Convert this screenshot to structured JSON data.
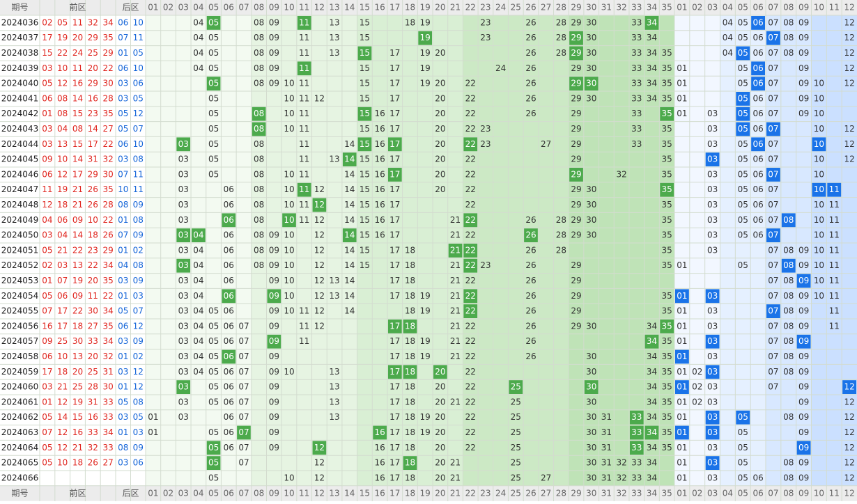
{
  "header": {
    "issue": "期号",
    "front": "前区",
    "back": "后区",
    "front_cols": [
      "01",
      "02",
      "03",
      "04",
      "05",
      "06",
      "07",
      "08",
      "09",
      "10",
      "11",
      "12",
      "13",
      "14",
      "15",
      "16",
      "17",
      "18",
      "19",
      "20",
      "21",
      "22",
      "23",
      "24",
      "25",
      "26",
      "27",
      "28",
      "29",
      "30",
      "31",
      "32",
      "33",
      "34",
      "35"
    ],
    "back_cols": [
      "01",
      "02",
      "03",
      "04",
      "05",
      "06",
      "07",
      "08",
      "09",
      "10",
      "11",
      "12"
    ]
  },
  "rows": [
    {
      "issue": "2024036",
      "front": [
        "02",
        "05",
        "11",
        "32",
        "34"
      ],
      "back": [
        "06",
        "10"
      ],
      "front_dist": [
        "04",
        "05",
        "08",
        "09",
        "11",
        "13",
        "15",
        "18",
        "19",
        "23",
        "26",
        "28",
        "29",
        "30",
        "33",
        "34"
      ],
      "back_dist": [
        "04",
        "05",
        "06",
        "07",
        "08",
        "09",
        "12"
      ]
    },
    {
      "issue": "2024037",
      "front": [
        "17",
        "19",
        "20",
        "29",
        "35"
      ],
      "back": [
        "07",
        "11"
      ],
      "front_dist": [
        "04",
        "05",
        "08",
        "09",
        "11",
        "13",
        "15",
        "19",
        "23",
        "26",
        "28",
        "29",
        "30",
        "33",
        "34"
      ],
      "back_dist": [
        "04",
        "05",
        "06",
        "07",
        "08",
        "09",
        "12"
      ]
    },
    {
      "issue": "2024038",
      "front": [
        "15",
        "22",
        "24",
        "25",
        "29"
      ],
      "back": [
        "01",
        "05"
      ],
      "front_dist": [
        "04",
        "05",
        "08",
        "09",
        "11",
        "13",
        "15",
        "17",
        "19",
        "20",
        "26",
        "28",
        "29",
        "30",
        "33",
        "34",
        "35"
      ],
      "back_dist": [
        "04",
        "05",
        "06",
        "07",
        "08",
        "09",
        "12"
      ]
    },
    {
      "issue": "2024039",
      "front": [
        "03",
        "10",
        "11",
        "20",
        "22"
      ],
      "back": [
        "06",
        "10"
      ],
      "front_dist": [
        "04",
        "05",
        "08",
        "09",
        "11",
        "15",
        "17",
        "19",
        "24",
        "26",
        "29",
        "30",
        "33",
        "34",
        "35"
      ],
      "back_dist": [
        "01",
        "05",
        "06",
        "07",
        "09",
        "12"
      ]
    },
    {
      "issue": "2024040",
      "front": [
        "05",
        "12",
        "16",
        "29",
        "30"
      ],
      "back": [
        "03",
        "06"
      ],
      "front_dist": [
        "05",
        "08",
        "09",
        "10",
        "11",
        "15",
        "17",
        "19",
        "20",
        "22",
        "26",
        "29",
        "30",
        "33",
        "34",
        "35"
      ],
      "back_dist": [
        "01",
        "05",
        "06",
        "07",
        "09",
        "10",
        "12"
      ]
    },
    {
      "issue": "2024041",
      "front": [
        "06",
        "08",
        "14",
        "16",
        "28"
      ],
      "back": [
        "03",
        "05"
      ],
      "front_dist": [
        "05",
        "10",
        "11",
        "12",
        "15",
        "17",
        "20",
        "22",
        "26",
        "29",
        "30",
        "33",
        "34",
        "35"
      ],
      "back_dist": [
        "01",
        "05",
        "06",
        "07",
        "09",
        "10"
      ]
    },
    {
      "issue": "2024042",
      "front": [
        "01",
        "08",
        "15",
        "23",
        "35"
      ],
      "back": [
        "05",
        "12"
      ],
      "front_dist": [
        "05",
        "08",
        "10",
        "11",
        "15",
        "16",
        "17",
        "20",
        "22",
        "26",
        "29",
        "33",
        "35"
      ],
      "back_dist": [
        "01",
        "03",
        "05",
        "06",
        "07",
        "09",
        "10"
      ]
    },
    {
      "issue": "2024043",
      "front": [
        "03",
        "04",
        "08",
        "14",
        "27"
      ],
      "back": [
        "05",
        "07"
      ],
      "front_dist": [
        "05",
        "08",
        "10",
        "11",
        "15",
        "16",
        "17",
        "20",
        "22",
        "23",
        "29",
        "33",
        "35"
      ],
      "back_dist": [
        "03",
        "05",
        "06",
        "07",
        "10",
        "12"
      ]
    },
    {
      "issue": "2024044",
      "front": [
        "03",
        "13",
        "15",
        "17",
        "22"
      ],
      "back": [
        "06",
        "10"
      ],
      "front_dist": [
        "03",
        "05",
        "08",
        "11",
        "14",
        "15",
        "16",
        "17",
        "20",
        "22",
        "23",
        "27",
        "29",
        "33",
        "35"
      ],
      "back_dist": [
        "03",
        "05",
        "06",
        "07",
        "10",
        "12"
      ]
    },
    {
      "issue": "2024045",
      "front": [
        "09",
        "10",
        "14",
        "31",
        "32"
      ],
      "back": [
        "03",
        "08"
      ],
      "front_dist": [
        "03",
        "05",
        "08",
        "11",
        "13",
        "14",
        "15",
        "16",
        "17",
        "20",
        "22",
        "29",
        "35"
      ],
      "back_dist": [
        "03",
        "05",
        "06",
        "07",
        "10",
        "12"
      ]
    },
    {
      "issue": "2024046",
      "front": [
        "06",
        "12",
        "17",
        "29",
        "30"
      ],
      "back": [
        "07",
        "11"
      ],
      "front_dist": [
        "03",
        "05",
        "08",
        "10",
        "11",
        "14",
        "15",
        "16",
        "17",
        "20",
        "22",
        "29",
        "32",
        "35"
      ],
      "back_dist": [
        "03",
        "05",
        "06",
        "07",
        "10"
      ]
    },
    {
      "issue": "2024047",
      "front": [
        "11",
        "19",
        "21",
        "26",
        "35"
      ],
      "back": [
        "10",
        "11"
      ],
      "front_dist": [
        "03",
        "06",
        "08",
        "10",
        "11",
        "12",
        "14",
        "15",
        "16",
        "17",
        "20",
        "22",
        "29",
        "30",
        "35"
      ],
      "back_dist": [
        "03",
        "05",
        "06",
        "07",
        "10",
        "11"
      ]
    },
    {
      "issue": "2024048",
      "front": [
        "12",
        "18",
        "21",
        "26",
        "28"
      ],
      "back": [
        "08",
        "09"
      ],
      "front_dist": [
        "03",
        "06",
        "08",
        "10",
        "11",
        "12",
        "14",
        "15",
        "16",
        "17",
        "22",
        "29",
        "30",
        "35"
      ],
      "back_dist": [
        "03",
        "05",
        "06",
        "07",
        "10",
        "11"
      ]
    },
    {
      "issue": "2024049",
      "front": [
        "04",
        "06",
        "09",
        "10",
        "22"
      ],
      "back": [
        "01",
        "08"
      ],
      "front_dist": [
        "03",
        "06",
        "08",
        "10",
        "11",
        "12",
        "14",
        "15",
        "16",
        "17",
        "21",
        "22",
        "26",
        "28",
        "29",
        "30",
        "35"
      ],
      "back_dist": [
        "03",
        "05",
        "06",
        "07",
        "08",
        "10",
        "11"
      ]
    },
    {
      "issue": "2024050",
      "front": [
        "03",
        "04",
        "14",
        "18",
        "26"
      ],
      "back": [
        "07",
        "09"
      ],
      "front_dist": [
        "03",
        "04",
        "06",
        "08",
        "09",
        "10",
        "12",
        "14",
        "15",
        "16",
        "17",
        "21",
        "22",
        "26",
        "28",
        "29",
        "30",
        "35"
      ],
      "back_dist": [
        "03",
        "05",
        "06",
        "07",
        "10",
        "11"
      ]
    },
    {
      "issue": "2024051",
      "front": [
        "05",
        "21",
        "22",
        "23",
        "29"
      ],
      "back": [
        "01",
        "02"
      ],
      "front_dist": [
        "03",
        "04",
        "06",
        "08",
        "09",
        "10",
        "12",
        "14",
        "15",
        "17",
        "18",
        "21",
        "22",
        "26",
        "28",
        "35"
      ],
      "back_dist": [
        "03",
        "07",
        "08",
        "09",
        "10",
        "11"
      ]
    },
    {
      "issue": "2024052",
      "front": [
        "02",
        "03",
        "13",
        "22",
        "34"
      ],
      "back": [
        "04",
        "08"
      ],
      "front_dist": [
        "03",
        "04",
        "06",
        "08",
        "09",
        "10",
        "12",
        "14",
        "15",
        "17",
        "18",
        "21",
        "22",
        "23",
        "26",
        "29",
        "35"
      ],
      "back_dist": [
        "01",
        "05",
        "07",
        "08",
        "09",
        "10",
        "11"
      ]
    },
    {
      "issue": "2024053",
      "front": [
        "01",
        "07",
        "19",
        "20",
        "35"
      ],
      "back": [
        "03",
        "09"
      ],
      "front_dist": [
        "03",
        "04",
        "06",
        "09",
        "10",
        "12",
        "13",
        "14",
        "17",
        "18",
        "21",
        "22",
        "26",
        "29"
      ],
      "back_dist": [
        "07",
        "08",
        "09",
        "10",
        "11"
      ]
    },
    {
      "issue": "2024054",
      "front": [
        "05",
        "06",
        "09",
        "11",
        "22"
      ],
      "back": [
        "01",
        "03"
      ],
      "front_dist": [
        "03",
        "04",
        "06",
        "09",
        "10",
        "12",
        "13",
        "14",
        "17",
        "18",
        "19",
        "21",
        "22",
        "26",
        "29",
        "35"
      ],
      "back_dist": [
        "01",
        "03",
        "07",
        "08",
        "09",
        "10",
        "11"
      ]
    },
    {
      "issue": "2024055",
      "front": [
        "07",
        "17",
        "22",
        "30",
        "34"
      ],
      "back": [
        "05",
        "07"
      ],
      "front_dist": [
        "03",
        "04",
        "05",
        "06",
        "09",
        "10",
        "11",
        "12",
        "14",
        "18",
        "19",
        "21",
        "22",
        "26",
        "29",
        "35"
      ],
      "back_dist": [
        "01",
        "03",
        "07",
        "08",
        "09",
        "11"
      ]
    },
    {
      "issue": "2024056",
      "front": [
        "16",
        "17",
        "18",
        "27",
        "35"
      ],
      "back": [
        "06",
        "12"
      ],
      "front_dist": [
        "03",
        "04",
        "05",
        "06",
        "07",
        "09",
        "11",
        "12",
        "17",
        "18",
        "21",
        "22",
        "26",
        "29",
        "30",
        "34",
        "35"
      ],
      "back_dist": [
        "01",
        "03",
        "07",
        "08",
        "09",
        "11"
      ]
    },
    {
      "issue": "2024057",
      "front": [
        "09",
        "25",
        "30",
        "33",
        "34"
      ],
      "back": [
        "03",
        "09"
      ],
      "front_dist": [
        "03",
        "04",
        "05",
        "06",
        "07",
        "09",
        "11",
        "17",
        "18",
        "19",
        "21",
        "22",
        "26",
        "34",
        "35"
      ],
      "back_dist": [
        "01",
        "03",
        "07",
        "08",
        "09"
      ]
    },
    {
      "issue": "2024058",
      "front": [
        "06",
        "10",
        "13",
        "20",
        "32"
      ],
      "back": [
        "01",
        "02"
      ],
      "front_dist": [
        "03",
        "04",
        "05",
        "06",
        "07",
        "09",
        "17",
        "18",
        "19",
        "21",
        "22",
        "26",
        "30",
        "34",
        "35"
      ],
      "back_dist": [
        "01",
        "03",
        "07",
        "08",
        "09"
      ]
    },
    {
      "issue": "2024059",
      "front": [
        "17",
        "18",
        "20",
        "25",
        "31"
      ],
      "back": [
        "03",
        "12"
      ],
      "front_dist": [
        "03",
        "04",
        "05",
        "06",
        "07",
        "09",
        "10",
        "13",
        "17",
        "18",
        "20",
        "22",
        "30",
        "34",
        "35"
      ],
      "back_dist": [
        "01",
        "02",
        "03",
        "07",
        "08",
        "09"
      ]
    },
    {
      "issue": "2024060",
      "front": [
        "03",
        "21",
        "25",
        "28",
        "30"
      ],
      "back": [
        "01",
        "12"
      ],
      "front_dist": [
        "03",
        "05",
        "06",
        "07",
        "09",
        "13",
        "17",
        "18",
        "20",
        "22",
        "25",
        "30",
        "34",
        "35"
      ],
      "back_dist": [
        "01",
        "02",
        "03",
        "07",
        "09",
        "12"
      ]
    },
    {
      "issue": "2024061",
      "front": [
        "01",
        "12",
        "19",
        "31",
        "33"
      ],
      "back": [
        "05",
        "08"
      ],
      "front_dist": [
        "03",
        "05",
        "06",
        "07",
        "09",
        "13",
        "17",
        "18",
        "20",
        "21",
        "22",
        "25",
        "30",
        "34",
        "35"
      ],
      "back_dist": [
        "01",
        "02",
        "03",
        "09",
        "12"
      ]
    },
    {
      "issue": "2024062",
      "front": [
        "05",
        "14",
        "15",
        "16",
        "33"
      ],
      "back": [
        "03",
        "05"
      ],
      "front_dist": [
        "01",
        "03",
        "06",
        "07",
        "09",
        "13",
        "17",
        "18",
        "19",
        "20",
        "22",
        "25",
        "30",
        "31",
        "33",
        "34",
        "35"
      ],
      "back_dist": [
        "01",
        "03",
        "05",
        "08",
        "09",
        "12"
      ]
    },
    {
      "issue": "2024063",
      "front": [
        "07",
        "12",
        "16",
        "33",
        "34"
      ],
      "back": [
        "01",
        "03"
      ],
      "front_dist": [
        "01",
        "05",
        "06",
        "07",
        "09",
        "16",
        "17",
        "18",
        "19",
        "20",
        "22",
        "25",
        "30",
        "31",
        "33",
        "34",
        "35"
      ],
      "back_dist": [
        "01",
        "03",
        "05",
        "09",
        "12"
      ]
    },
    {
      "issue": "2024064",
      "front": [
        "05",
        "12",
        "21",
        "32",
        "33"
      ],
      "back": [
        "08",
        "09"
      ],
      "front_dist": [
        "05",
        "06",
        "07",
        "09",
        "12",
        "16",
        "17",
        "18",
        "20",
        "22",
        "25",
        "30",
        "31",
        "33",
        "34",
        "35"
      ],
      "back_dist": [
        "01",
        "03",
        "05",
        "09",
        "12"
      ]
    },
    {
      "issue": "2024065",
      "front": [
        "05",
        "10",
        "18",
        "26",
        "27"
      ],
      "back": [
        "03",
        "06"
      ],
      "front_dist": [
        "05",
        "07",
        "12",
        "16",
        "17",
        "18",
        "20",
        "21",
        "25",
        "30",
        "31",
        "32",
        "33",
        "34"
      ],
      "back_dist": [
        "01",
        "03",
        "05",
        "08",
        "09",
        "12"
      ]
    },
    {
      "issue": "2024066",
      "front": [],
      "back": [],
      "front_dist": [
        "05",
        "10",
        "12",
        "16",
        "17",
        "18",
        "20",
        "21",
        "25",
        "27",
        "30",
        "31",
        "32",
        "33",
        "34"
      ],
      "back_dist": [
        "01",
        "03",
        "05",
        "06",
        "08",
        "09",
        "12"
      ]
    }
  ]
}
